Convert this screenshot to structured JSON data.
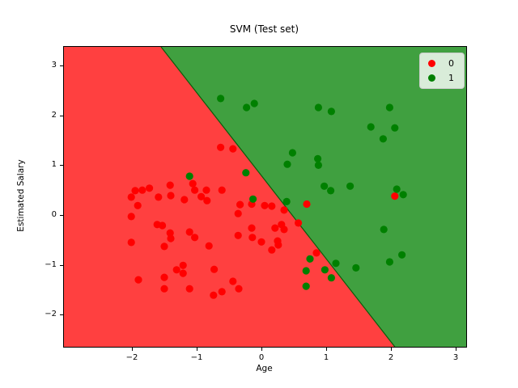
{
  "figure": {
    "title": "SVM (Test set)",
    "xlabel": "Age",
    "ylabel": "Estimated Salary"
  },
  "legend": {
    "items": [
      {
        "label": "0",
        "color": "#ff0000",
        "marker": "circle-icon"
      },
      {
        "label": "1",
        "color": "#008000",
        "marker": "circle-icon"
      }
    ]
  },
  "colors": {
    "region_class0_bg": "#ff4040",
    "region_class1_bg": "#40a040",
    "boundary_edge": "#0a5d0a",
    "class0_marker": "#ff0000",
    "class1_marker": "#008000",
    "axis": "#000000",
    "legend_bg": "#d9ecd9",
    "legend_border": "#cccccc"
  },
  "chart_data": {
    "type": "scatter",
    "title": "SVM (Test set)",
    "xlabel": "Age",
    "ylabel": "Estimated Salary",
    "xlim": [
      -3.05,
      3.1625
    ],
    "ylim": [
      -2.645,
      3.377
    ],
    "x_ticks": [
      -2,
      -1,
      0,
      1,
      2,
      3
    ],
    "y_ticks": [
      -2,
      -1,
      0,
      1,
      2,
      3
    ],
    "grid": false,
    "legend_position": "upper right",
    "decision_boundary": {
      "x_at_ytop": -1.55,
      "x_at_ybottom": 2.06
    },
    "regions": [
      {
        "class": "0",
        "side": "left-of-boundary",
        "color": "#ff4040"
      },
      {
        "class": "1",
        "side": "right-of-boundary",
        "color": "#40a040"
      }
    ],
    "series": [
      {
        "name": "0",
        "color": "#ff0000",
        "points": [
          [
            -1.95,
            0.49
          ],
          [
            -1.84,
            0.5
          ],
          [
            -1.73,
            0.54
          ],
          [
            -2.01,
            0.36
          ],
          [
            -1.59,
            0.36
          ],
          [
            -1.41,
            0.6
          ],
          [
            -1.4,
            0.39
          ],
          [
            -1.91,
            0.19
          ],
          [
            -1.19,
            0.31
          ],
          [
            -1.06,
            0.63
          ],
          [
            -1.03,
            0.5
          ],
          [
            -0.85,
            0.5
          ],
          [
            -0.93,
            0.37
          ],
          [
            -0.84,
            0.29
          ],
          [
            -0.61,
            0.5
          ],
          [
            -0.63,
            1.36
          ],
          [
            -0.44,
            1.33
          ],
          [
            -2.01,
            -0.03
          ],
          [
            -1.61,
            -0.19
          ],
          [
            -1.53,
            -0.21
          ],
          [
            -1.41,
            -0.36
          ],
          [
            -1.4,
            -0.47
          ],
          [
            -1.11,
            -0.34
          ],
          [
            -1.03,
            -0.45
          ],
          [
            -2.01,
            -0.55
          ],
          [
            -1.5,
            -0.63
          ],
          [
            -0.81,
            -0.62
          ],
          [
            -0.33,
            0.21
          ],
          [
            -0.15,
            0.22
          ],
          [
            0.05,
            0.19
          ],
          [
            0.16,
            0.18
          ],
          [
            -0.36,
            0.03
          ],
          [
            -0.15,
            -0.26
          ],
          [
            0.21,
            -0.26
          ],
          [
            0.31,
            -0.19
          ],
          [
            0.35,
            -0.29
          ],
          [
            -0.36,
            -0.41
          ],
          [
            -0.14,
            -0.45
          ],
          [
            0.0,
            -0.54
          ],
          [
            0.25,
            -0.52
          ],
          [
            0.26,
            -0.6
          ],
          [
            0.16,
            -0.7
          ],
          [
            0.35,
            0.1
          ],
          [
            0.7,
            0.22
          ],
          [
            0.57,
            -0.16
          ],
          [
            0.85,
            -0.76
          ],
          [
            -1.9,
            -1.3
          ],
          [
            -1.5,
            -1.25
          ],
          [
            -1.5,
            -1.48
          ],
          [
            -1.31,
            -1.1
          ],
          [
            -1.21,
            -1.01
          ],
          [
            -1.21,
            -1.17
          ],
          [
            -1.11,
            -1.48
          ],
          [
            -0.73,
            -1.09
          ],
          [
            -0.44,
            -1.33
          ],
          [
            -0.35,
            -1.48
          ],
          [
            -0.74,
            -1.61
          ],
          [
            -0.61,
            -1.54
          ],
          [
            2.06,
            0.38
          ]
        ]
      },
      {
        "name": "1",
        "color": "#008000",
        "points": [
          [
            -0.63,
            2.34
          ],
          [
            -0.23,
            2.16
          ],
          [
            -0.11,
            2.24
          ],
          [
            0.88,
            2.16
          ],
          [
            1.08,
            2.08
          ],
          [
            1.98,
            2.16
          ],
          [
            1.69,
            1.77
          ],
          [
            2.06,
            1.75
          ],
          [
            1.88,
            1.53
          ],
          [
            0.48,
            1.25
          ],
          [
            0.4,
            1.02
          ],
          [
            0.87,
            1.13
          ],
          [
            0.88,
            1.0
          ],
          [
            -0.24,
            0.85
          ],
          [
            -1.11,
            0.78
          ],
          [
            -0.13,
            0.32
          ],
          [
            0.39,
            0.27
          ],
          [
            0.97,
            0.58
          ],
          [
            1.07,
            0.49
          ],
          [
            1.37,
            0.58
          ],
          [
            2.09,
            0.52
          ],
          [
            2.19,
            0.41
          ],
          [
            1.89,
            -0.29
          ],
          [
            0.75,
            -0.88
          ],
          [
            0.69,
            -1.12
          ],
          [
            0.98,
            -1.1
          ],
          [
            1.08,
            -1.26
          ],
          [
            0.69,
            -1.43
          ],
          [
            1.15,
            -0.97
          ],
          [
            1.46,
            -1.06
          ],
          [
            1.98,
            -0.94
          ],
          [
            2.17,
            -0.8
          ]
        ]
      }
    ],
    "marker_radius_px": 4.6
  }
}
